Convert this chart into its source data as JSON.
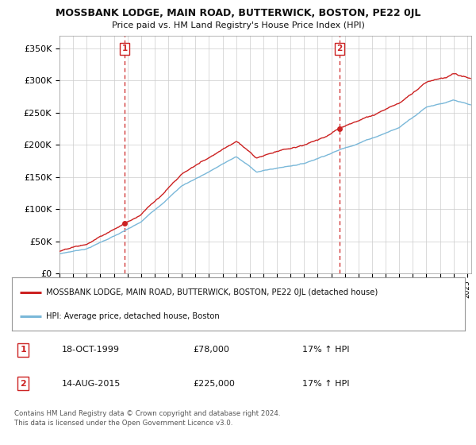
{
  "title": "MOSSBANK LODGE, MAIN ROAD, BUTTERWICK, BOSTON, PE22 0JL",
  "subtitle": "Price paid vs. HM Land Registry's House Price Index (HPI)",
  "ylabel_ticks": [
    "£0",
    "£50K",
    "£100K",
    "£150K",
    "£200K",
    "£250K",
    "£300K",
    "£350K"
  ],
  "ytick_values": [
    0,
    50000,
    100000,
    150000,
    200000,
    250000,
    300000,
    350000
  ],
  "ylim": [
    0,
    370000
  ],
  "xlim_start": 1995.0,
  "xlim_end": 2025.3,
  "sale1_x": 1999.8,
  "sale1_y": 78000,
  "sale2_x": 2015.62,
  "sale2_y": 225000,
  "hpi_color": "#7ab8d9",
  "price_color": "#cc2222",
  "dashed_color": "#cc2222",
  "background_color": "#ffffff",
  "grid_color": "#cccccc",
  "legend_label_price": "MOSSBANK LODGE, MAIN ROAD, BUTTERWICK, BOSTON, PE22 0JL (detached house)",
  "legend_label_hpi": "HPI: Average price, detached house, Boston",
  "table_row1_num": "1",
  "table_row1_date": "18-OCT-1999",
  "table_row1_price": "£78,000",
  "table_row1_hpi": "17% ↑ HPI",
  "table_row2_num": "2",
  "table_row2_date": "14-AUG-2015",
  "table_row2_price": "£225,000",
  "table_row2_hpi": "17% ↑ HPI",
  "footnote": "Contains HM Land Registry data © Crown copyright and database right 2024.\nThis data is licensed under the Open Government Licence v3.0."
}
